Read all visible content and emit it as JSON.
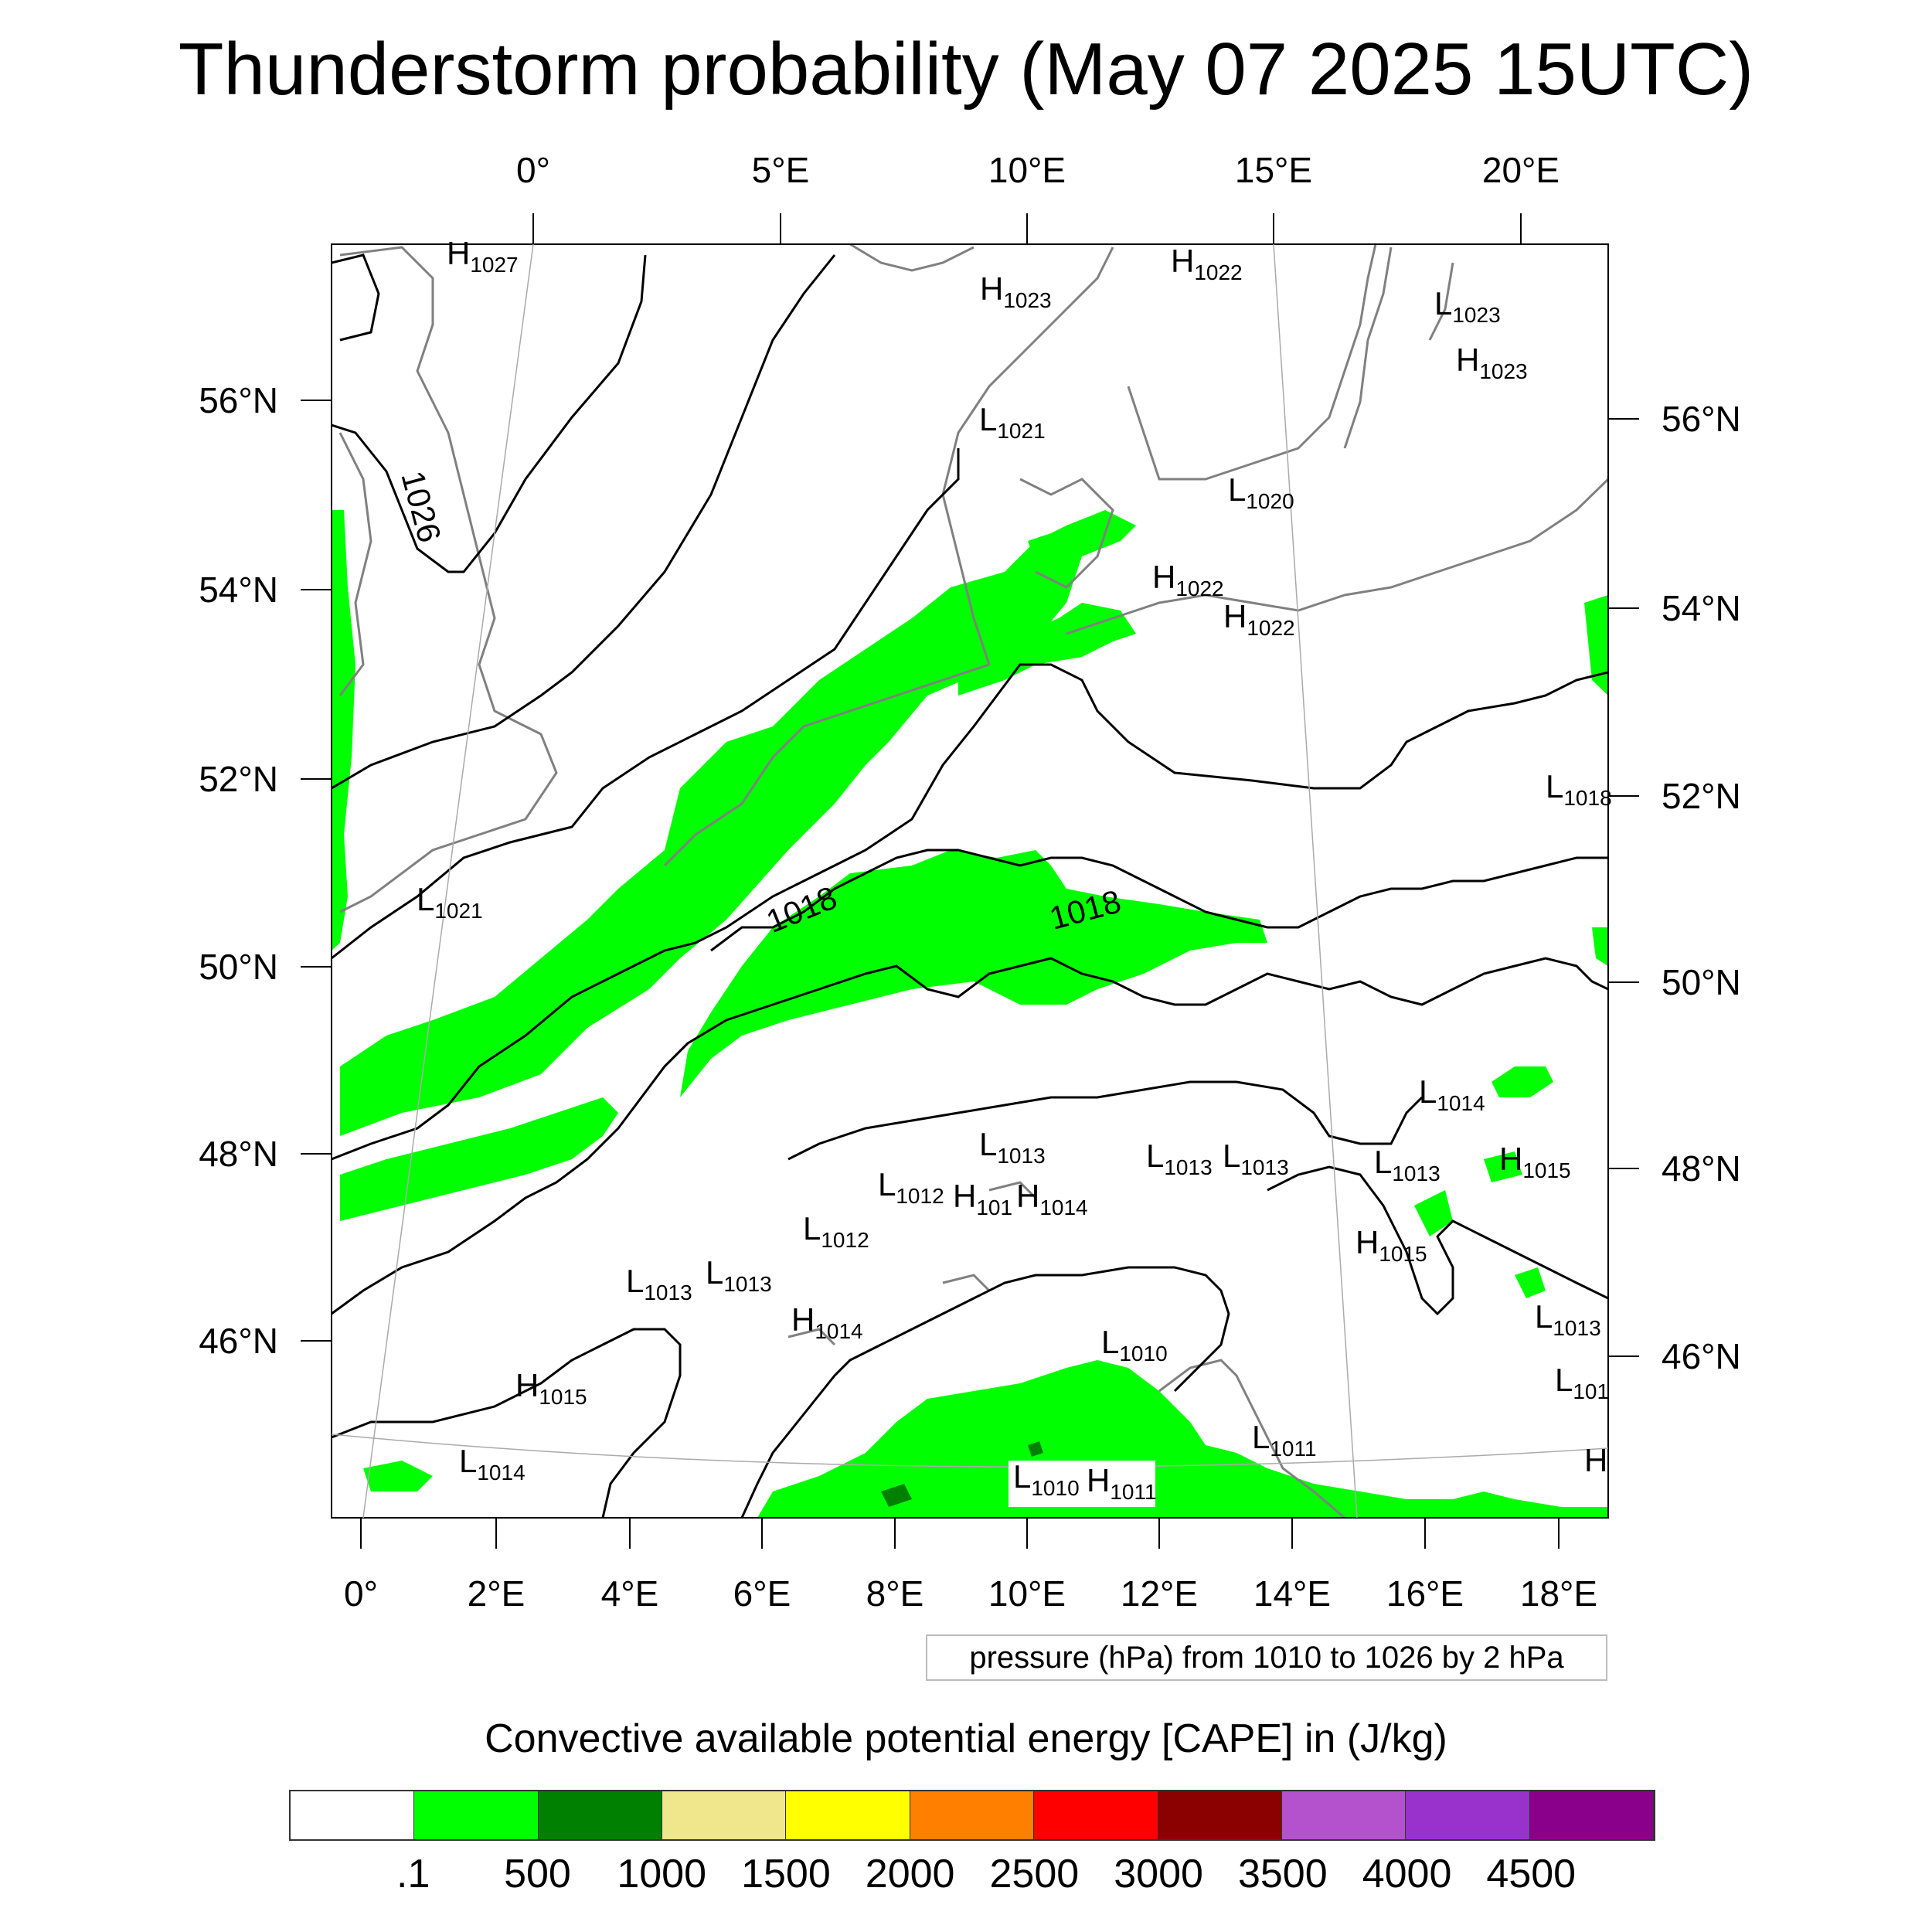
{
  "title": "Thunderstorm probability (May 07 2025 15UTC)",
  "map": {
    "projection_note": "",
    "top_lon_labels": [
      "0°",
      "5°E",
      "10°E",
      "15°E",
      "20°E"
    ],
    "bottom_lon_labels": [
      "0°",
      "2°E",
      "4°E",
      "6°E",
      "8°E",
      "10°E",
      "12°E",
      "14°E",
      "16°E",
      "18°E"
    ],
    "left_lat_labels": [
      "56°N",
      "54°N",
      "52°N",
      "50°N",
      "48°N",
      "46°N"
    ],
    "right_lat_labels": [
      "56°N",
      "54°N",
      "52°N",
      "50°N",
      "48°N",
      "46°N"
    ],
    "isobar_labels": [
      "1026",
      "1018",
      "1018"
    ],
    "pressure_centers": [
      {
        "type": "H",
        "value": "1027"
      },
      {
        "type": "H",
        "value": "1023"
      },
      {
        "type": "H",
        "value": "1022"
      },
      {
        "type": "L",
        "value": "1023"
      },
      {
        "type": "H",
        "value": "1023"
      },
      {
        "type": "L",
        "value": "1021"
      },
      {
        "type": "L",
        "value": "1020"
      },
      {
        "type": "H",
        "value": "1022"
      },
      {
        "type": "H",
        "value": "1022"
      },
      {
        "type": "L",
        "value": "1018"
      },
      {
        "type": "L",
        "value": "1021"
      },
      {
        "type": "L",
        "value": "1014"
      },
      {
        "type": "H",
        "value": "1015"
      },
      {
        "type": "L",
        "value": "1013"
      },
      {
        "type": "L",
        "value": "1013"
      },
      {
        "type": "L",
        "value": "1013"
      },
      {
        "type": "L",
        "value": "1013"
      },
      {
        "type": "L",
        "value": "1012"
      },
      {
        "type": "H",
        "value": "101"
      },
      {
        "type": "H",
        "value": "1014"
      },
      {
        "type": "L",
        "value": "1012"
      },
      {
        "type": "H",
        "value": "1015"
      },
      {
        "type": "L",
        "value": "1013"
      },
      {
        "type": "L",
        "value": "1013"
      },
      {
        "type": "H",
        "value": "1014"
      },
      {
        "type": "L",
        "value": "1010"
      },
      {
        "type": "L",
        "value": "1013"
      },
      {
        "type": "L",
        "value": "101"
      },
      {
        "type": "H",
        "value": "1015"
      },
      {
        "type": "L",
        "value": "1014"
      },
      {
        "type": "L",
        "value": "1011"
      },
      {
        "type": "L",
        "value": "1010"
      },
      {
        "type": "H",
        "value": "1011"
      },
      {
        "type": "H",
        "value": ""
      }
    ]
  },
  "info_box": "pressure (hPa) from 1010 to 1026 by 2 hPa",
  "colorbar": {
    "title": "Convective available potential energy [CAPE] in (J/kg)",
    "colors": [
      "#ffffff",
      "#00ff00",
      "#008000",
      "#f0e68c",
      "#ffff00",
      "#ff8000",
      "#ff0000",
      "#8b0000",
      "#b452cd",
      "#9932cc",
      "#8b008b"
    ],
    "labels": [
      ".1",
      "500",
      "1000",
      "1500",
      "2000",
      "2500",
      "3000",
      "3500",
      "4000",
      "4500"
    ]
  },
  "colors": {
    "cape_low": "#00ff00",
    "cape_mid": "#008000",
    "coast": "#808080",
    "isobar": "#000000"
  }
}
